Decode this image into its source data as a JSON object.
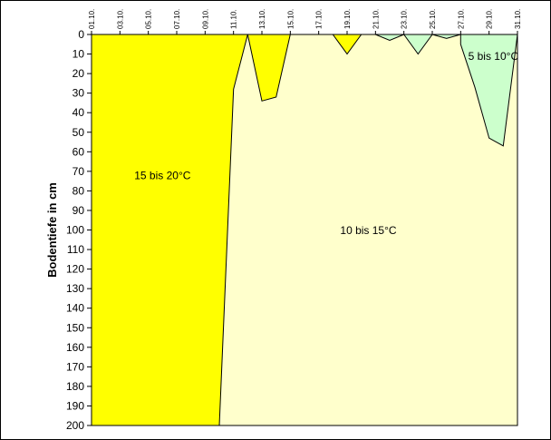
{
  "chart_data": {
    "type": "area",
    "ylabel": "Bodentiefe in cm",
    "ylim": [
      0,
      200
    ],
    "y_inverted": true,
    "xlim": [
      1,
      31
    ],
    "x_tick_labels": [
      "01.10.",
      "03.10.",
      "05.10.",
      "07.10.",
      "09.10.",
      "11.10.",
      "13.10.",
      "15.10.",
      "17.10.",
      "19.10.",
      "21.10.",
      "23.10.",
      "25.10.",
      "27.10.",
      "29.10.",
      "31.10."
    ],
    "x_tick_days": [
      1,
      3,
      5,
      7,
      9,
      11,
      13,
      15,
      17,
      19,
      21,
      23,
      25,
      27,
      29,
      31
    ],
    "y_ticks": [
      0,
      10,
      20,
      30,
      40,
      50,
      60,
      70,
      80,
      90,
      100,
      110,
      120,
      130,
      140,
      150,
      160,
      170,
      180,
      190,
      200
    ],
    "grid": false,
    "background_color": "#FFFFCC",
    "regions": [
      {
        "name": "15 bis 20°C",
        "color": "#FFFF00",
        "polygons": [
          [
            [
              1,
              0
            ],
            [
              12,
              0
            ],
            [
              11,
              28
            ],
            [
              10,
              200
            ],
            [
              1,
              200
            ]
          ],
          [
            [
              13,
              0
            ],
            [
              15,
              0
            ],
            [
              14,
              32
            ],
            [
              13,
              34
            ],
            [
              12,
              0
            ]
          ],
          [
            [
              18,
              0
            ],
            [
              20,
              0
            ],
            [
              19,
              10
            ]
          ]
        ]
      },
      {
        "name": "5 bis 10°C",
        "color": "#CCFFCC",
        "polygons": [
          [
            [
              21,
              0
            ],
            [
              23,
              0
            ],
            [
              22,
              3
            ]
          ],
          [
            [
              23,
              0
            ],
            [
              25,
              0
            ],
            [
              24,
              10
            ]
          ],
          [
            [
              25,
              0
            ],
            [
              27,
              0
            ],
            [
              26,
              2
            ]
          ],
          [
            [
              27,
              0
            ],
            [
              31,
              0
            ],
            [
              30,
              57
            ],
            [
              29,
              53
            ],
            [
              28,
              27
            ],
            [
              27,
              5
            ]
          ]
        ]
      }
    ],
    "labels": [
      {
        "text": "15 bis 20°C",
        "x": 6,
        "y": 74
      },
      {
        "text": "10 bis 15°C",
        "x": 20.5,
        "y": 102
      },
      {
        "text": "5 bis 10°C",
        "x": 29.3,
        "y": 13
      }
    ]
  }
}
